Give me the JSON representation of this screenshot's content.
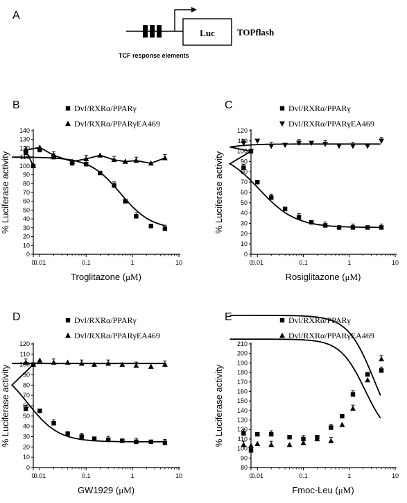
{
  "figure": {
    "panel_a": "A",
    "schematic": {
      "reporter_label": "Luc",
      "construct_name": "TOPflash",
      "elements_label": "TCF response elements"
    }
  },
  "chart_data": [
    {
      "type": "scatter",
      "panel": "B",
      "xlabel_text": "Troglitazone (",
      "xlabel_unit": "μM",
      "xlabel_close": ")",
      "ylabel": "% Luciferase activity",
      "x_ticks": [
        "0",
        "0.01",
        "0.1",
        "1",
        "10"
      ],
      "ylim": [
        0,
        140
      ],
      "y_step": 10,
      "series": [
        {
          "name": "Dvl/RXRα/PPARγ",
          "marker": "square",
          "x": [
            0,
            0.005,
            0.01,
            0.02,
            0.05,
            0.1,
            0.2,
            0.4,
            0.7,
            1.2,
            2.5,
            5
          ],
          "y": [
            100,
            115,
            118,
            110,
            103,
            102,
            92,
            78,
            60,
            43,
            32,
            29
          ],
          "curve": {
            "bottom": 28,
            "top": 110,
            "ec50": 0.55,
            "hill": 1.3
          }
        },
        {
          "name": "Dvl/RXRα/PPARγEA469",
          "marker": "triangle",
          "x": [
            0,
            0.005,
            0.01,
            0.02,
            0.05,
            0.1,
            0.2,
            0.4,
            0.7,
            1.2,
            2.5,
            5
          ],
          "y": [
            100,
            118,
            121,
            112,
            105,
            108,
            112,
            107,
            105,
            106,
            103,
            109
          ],
          "trace": true
        }
      ]
    },
    {
      "type": "scatter",
      "panel": "C",
      "xlabel_text": "Rosiglitazone (",
      "xlabel_unit": "μM",
      "xlabel_close": ")",
      "ylabel": "% Luciferase activity",
      "x_ticks": [
        "0",
        "0.01",
        "0.1",
        "1",
        "10"
      ],
      "ylim": [
        0,
        120
      ],
      "y_step": 10,
      "series": [
        {
          "name": "Dvl/RXRα/PPARγ",
          "marker": "square",
          "x": [
            0,
            0.005,
            0.01,
            0.02,
            0.04,
            0.08,
            0.15,
            0.3,
            0.6,
            1.2,
            2.5,
            5
          ],
          "y": [
            100,
            84,
            70,
            55,
            44,
            36,
            31,
            28,
            26,
            26,
            26,
            26
          ],
          "curve": {
            "bottom": 26,
            "top": 100,
            "ec50": 0.011,
            "hill": 1.1
          }
        },
        {
          "name": "Dvl/RXRα/PPARγEA469",
          "marker": "triangle-down",
          "x": [
            0,
            0.005,
            0.01,
            0.02,
            0.04,
            0.08,
            0.15,
            0.3,
            0.6,
            1.2,
            2.5,
            5
          ],
          "y": [
            100,
            108,
            110,
            105,
            106,
            108,
            108,
            107,
            105,
            105,
            105,
            110
          ],
          "curve": {
            "bottom": 107,
            "top": 100,
            "ec50": 0.002,
            "hill": 1.5
          }
        }
      ]
    },
    {
      "type": "scatter",
      "panel": "D",
      "xlabel_text": "GW1929 (",
      "xlabel_unit": "μM",
      "xlabel_close": ")",
      "ylabel": "% Luciferase activity",
      "x_ticks": [
        "0",
        "0.01",
        "0.1",
        "1",
        "10"
      ],
      "ylim": [
        0,
        120
      ],
      "y_step": 10,
      "series": [
        {
          "name": "Dvl/RXRα/PPARγ",
          "marker": "square",
          "x": [
            0,
            0.005,
            0.01,
            0.02,
            0.04,
            0.08,
            0.15,
            0.3,
            0.6,
            1.2,
            2.5,
            5
          ],
          "y": [
            100,
            57,
            55,
            43,
            33,
            30,
            28,
            27,
            26,
            25,
            25,
            24
          ],
          "curve": {
            "bottom": 25,
            "top": 100,
            "ec50": 0.0055,
            "hill": 1.3
          }
        },
        {
          "name": "Dvl/RXRα/PPARγEA469",
          "marker": "triangle",
          "x": [
            0,
            0.005,
            0.01,
            0.02,
            0.04,
            0.08,
            0.15,
            0.3,
            0.6,
            1.2,
            2.5,
            5
          ],
          "y": [
            100,
            102,
            104,
            102,
            102,
            101,
            100,
            101,
            100,
            99,
            98,
            100
          ],
          "curve": {
            "bottom": 101,
            "top": 101,
            "ec50": 0.1,
            "hill": 1
          }
        }
      ]
    },
    {
      "type": "scatter",
      "panel": "E",
      "xlabel_text": "Fmoc-Leu (",
      "xlabel_unit": "μM",
      "xlabel_close": ")",
      "ylabel": "% Luciferase activity",
      "x_ticks": [
        "0",
        "0.01",
        "0.1",
        "1",
        "10"
      ],
      "ylim": [
        80,
        210
      ],
      "y_step": 10,
      "series": [
        {
          "name": "Dvl/RXRα/PPARγ",
          "marker": "square",
          "x": [
            0,
            0.005,
            0.01,
            0.02,
            0.05,
            0.1,
            0.2,
            0.4,
            0.7,
            1.2,
            2.5,
            5
          ],
          "y": [
            98,
            116,
            115,
            115,
            112,
            110,
            112,
            122,
            134,
            157,
            178,
            182
          ],
          "curve": {
            "bottom": 108,
            "top": 215,
            "ec50": 2.2,
            "hill": 1.6
          }
        },
        {
          "name": "Dvl/RXRα/PPARγEA469",
          "marker": "triangle",
          "x": [
            0,
            0.005,
            0.01,
            0.02,
            0.05,
            0.1,
            0.2,
            0.4,
            0.7,
            1.2,
            2.5,
            5
          ],
          "y": [
            103,
            104,
            105,
            104,
            104,
            106,
            110,
            108,
            125,
            142,
            172,
            194
          ],
          "curve": {
            "bottom": 103,
            "top": 240,
            "ec50": 3.5,
            "hill": 1.5
          }
        }
      ]
    }
  ]
}
